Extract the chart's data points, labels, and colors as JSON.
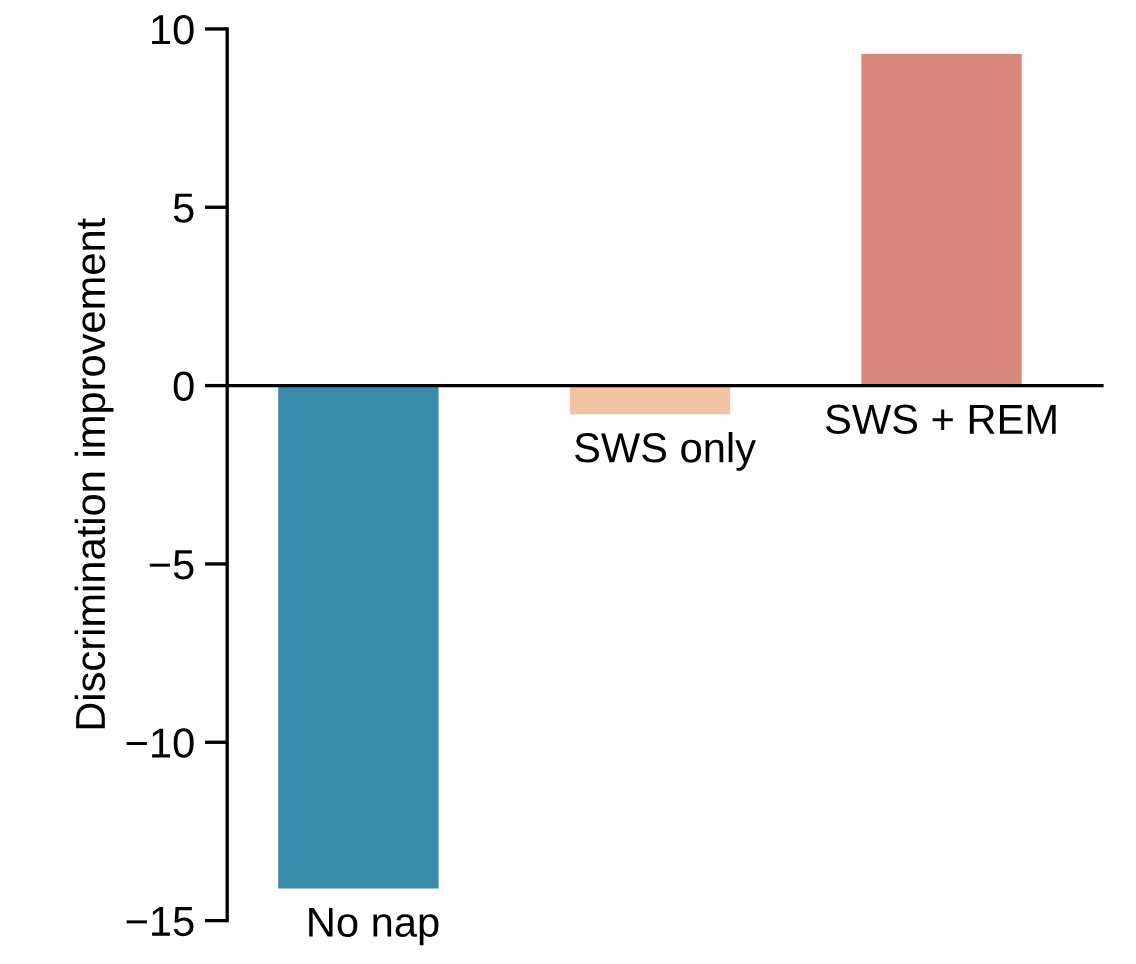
{
  "chart_data": {
    "type": "bar",
    "ylabel": "Discrimination improvement",
    "categories": [
      "No nap",
      "SWS only",
      "SWS + REM"
    ],
    "values": [
      -14.1,
      -0.8,
      9.3
    ],
    "colors": [
      "#3a8aaa",
      "#f3c2a2",
      "#d8877b"
    ],
    "ylim": [
      -15,
      10
    ],
    "yticks": [
      {
        "value": -15,
        "label": "−15"
      },
      {
        "value": -10,
        "label": "−10"
      },
      {
        "value": -5,
        "label": "−5"
      },
      0,
      5,
      10
    ]
  }
}
